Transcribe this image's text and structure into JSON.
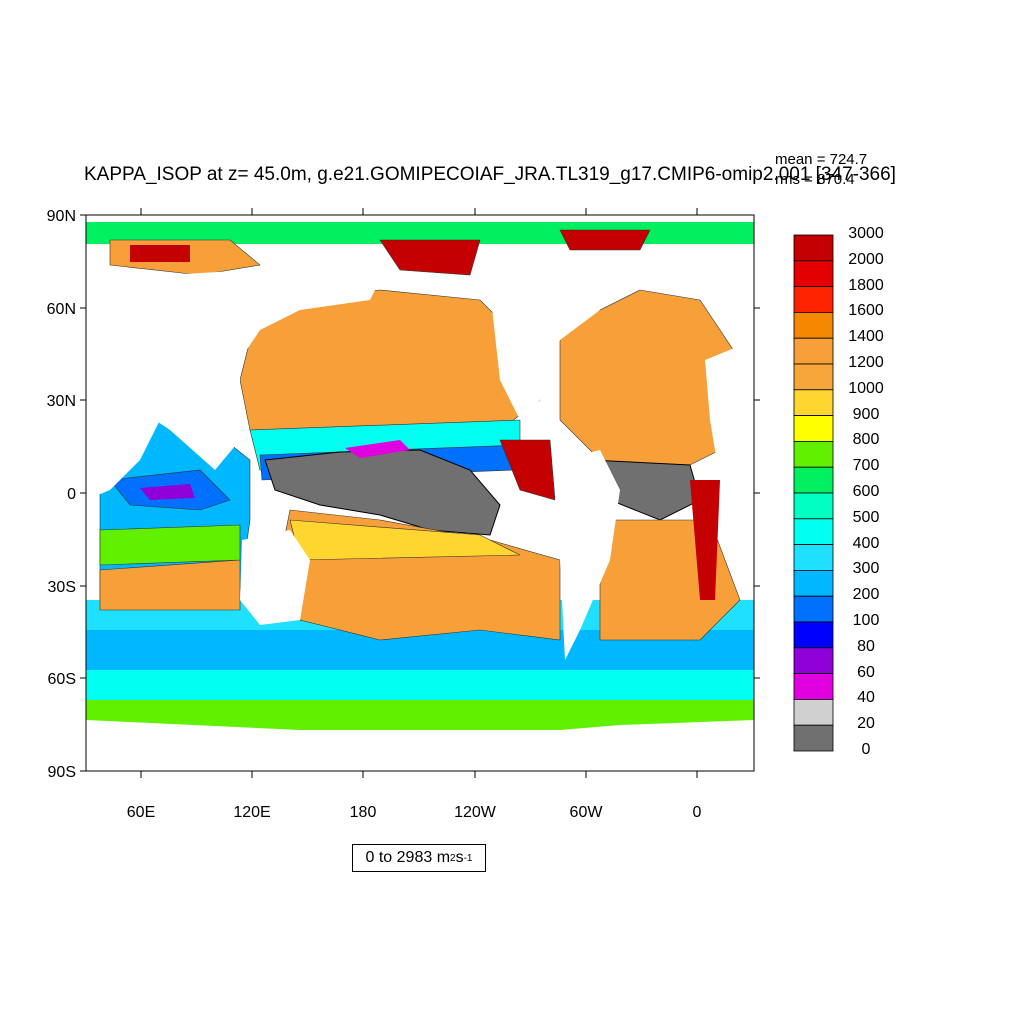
{
  "title": "KAPPA_ISOP at z=  45.0m, g.e21.GOMIPECOIAF_JRA.TL319_g17.CMIP6-omip2.001 [347-366]",
  "stats": {
    "mean": "mean = 724.7",
    "rms": "rms = 870.4"
  },
  "range": {
    "text": "0 to 2983 m",
    "exp1": "2",
    "unit2": " s",
    "exp2": "-1"
  },
  "map": {
    "lat_labels": [
      "90N",
      "60N",
      "30N",
      "0",
      "30S",
      "60S",
      "90S"
    ],
    "lon_labels": [
      "60E",
      "120E",
      "180",
      "120W",
      "60W",
      "0"
    ]
  },
  "colorbar": {
    "levels": [
      "3000",
      "2000",
      "1800",
      "1600",
      "1400",
      "1200",
      "1000",
      "900",
      "800",
      "700",
      "600",
      "500",
      "400",
      "300",
      "200",
      "100",
      "80",
      "60",
      "40",
      "20",
      "0"
    ],
    "colors": [
      "#c40000",
      "#e40000",
      "#ff2200",
      "#f58800",
      "#f7a03a",
      "#f7a63a",
      "#ffd630",
      "#ffff00",
      "#60f000",
      "#00f060",
      "#00ffc0",
      "#00fff0",
      "#20e0ff",
      "#00b8ff",
      "#0070ff",
      "#0000ff",
      "#9000d8",
      "#e000e0",
      "#d0d0d0",
      "#707070"
    ]
  }
}
